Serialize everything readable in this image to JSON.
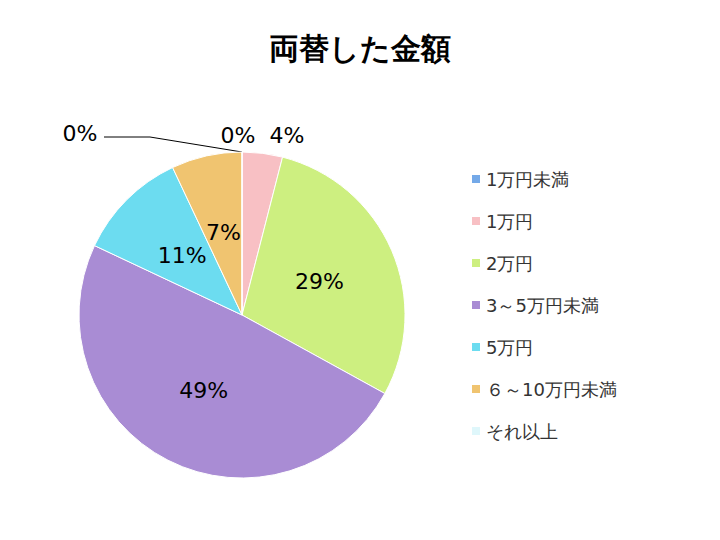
{
  "chart_data": {
    "type": "pie",
    "title": "両替した金額",
    "categories": [
      "1万円未満",
      "1万円",
      "2万円",
      "3～5万円未満",
      "5万円",
      "６～10万円未満",
      "それ以上"
    ],
    "values": [
      0,
      4,
      29,
      49,
      11,
      7,
      0
    ],
    "value_labels": [
      "0%",
      "4%",
      "29%",
      "49%",
      "11%",
      "7%",
      "0%"
    ],
    "colors": [
      "#74a9e8",
      "#f8c0c4",
      "#cdef80",
      "#a98cd4",
      "#6cdcf0",
      "#f0c470",
      "#dff7fb"
    ],
    "data_labels": true,
    "legend": "right"
  }
}
